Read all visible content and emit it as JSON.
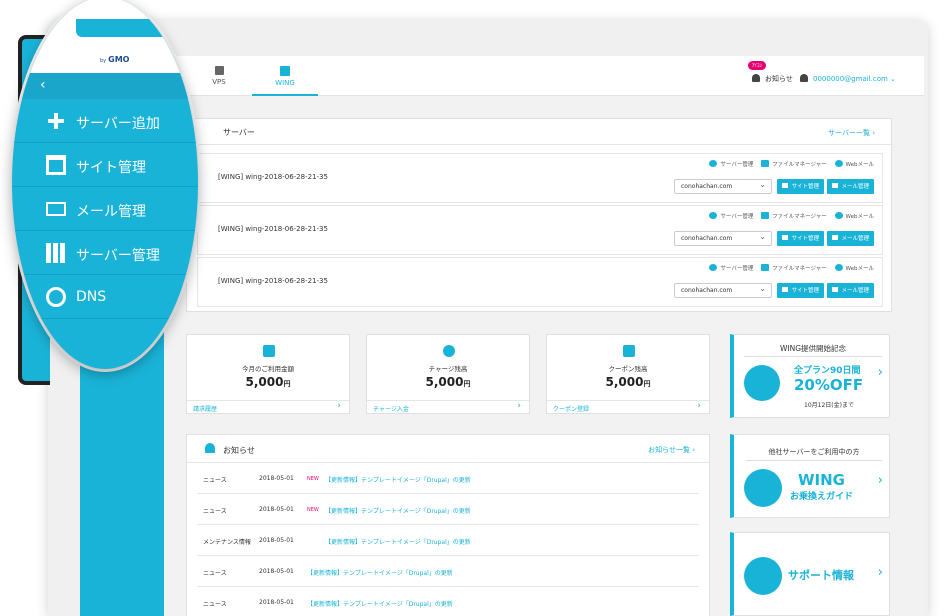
{
  "topbar": {
    "tabs": [
      {
        "label": "VPS",
        "icon": "server-box-icon"
      },
      {
        "label": "WING",
        "icon": "wing-icon",
        "active": true
      }
    ],
    "notif_badge": "ｱｲｺﾝ",
    "notif_label": "お知らせ",
    "user_email": "0000000@gmail.com"
  },
  "servers": {
    "title": "サーバー",
    "more": "サーバー一覧",
    "rows": [
      {
        "name": "[WING] wing-2018-06-28-21-35",
        "domain": "conohachan.com"
      },
      {
        "name": "[WING] wing-2018-06-28-21-35",
        "domain": "conohachan.com"
      },
      {
        "name": "[WING] wing-2018-06-28-21-35",
        "domain": "conohachan.com"
      }
    ],
    "link_server": "サーバー管理",
    "link_files": "ファイルマネージャー",
    "link_webmail": "Webメール",
    "btn_site": "サイト管理",
    "btn_mail": "メール管理"
  },
  "cards": [
    {
      "label": "今月のご利用金額",
      "value": "5,000",
      "unit": "円",
      "foot": "請求履歴"
    },
    {
      "label": "チャージ残高",
      "value": "5,000",
      "unit": "円",
      "foot": "チャージ入金"
    },
    {
      "label": "クーポン残高",
      "value": "5,000",
      "unit": "円",
      "foot": "クーポン登録"
    }
  ],
  "news": {
    "title": "お知らせ",
    "more": "お知らせ一覧",
    "items": [
      {
        "category": "ニュース",
        "date": "2018-05-01",
        "new": "NEW",
        "title": "【更新情報】テンプレートイメージ「Drupal」の更新"
      },
      {
        "category": "ニュース",
        "date": "2018-05-01",
        "new": "NEW",
        "title": "【更新情報】テンプレートイメージ「Drupal」の更新"
      },
      {
        "category": "メンテナンス情報",
        "date": "2018-05-01",
        "new": "",
        "title": "【更新情報】テンプレートイメージ「Drupal」の更新"
      },
      {
        "category": "ニュース",
        "date": "2018-05-01",
        "new": "",
        "title": "【更新情報】テンプレートイメージ「Drupal」の更新"
      },
      {
        "category": "ニュース",
        "date": "2018-05-01",
        "new": "",
        "title": "【更新情報】テンプレートイメージ「Drupal」の更新"
      }
    ]
  },
  "promos": {
    "p1_head": "WING提供開始記念",
    "p1_line1": "全プラン90日間",
    "p1_line2": "20%OFF",
    "p1_line3": "10月12日(金)まで",
    "p2_head": "他社サーバーをご利用中の方",
    "p2_line1": "WING",
    "p2_line2": "お乗換えガイド",
    "p3_line1": "サポート情報"
  },
  "magnifier": {
    "logo_by": "by",
    "logo_gmo": "GMO",
    "back": "‹",
    "menu": [
      {
        "label": "サーバー追加",
        "icon": "plus-icon"
      },
      {
        "label": "サイト管理",
        "icon": "window-icon"
      },
      {
        "label": "メール管理",
        "icon": "mail-icon"
      },
      {
        "label": "サーバー管理",
        "icon": "server-icon"
      },
      {
        "label": "DNS",
        "icon": "globe-icon"
      }
    ]
  },
  "colors": {
    "accent": "#1ab3d8",
    "badge": "#e4006f",
    "background": "#f2f2f2"
  }
}
